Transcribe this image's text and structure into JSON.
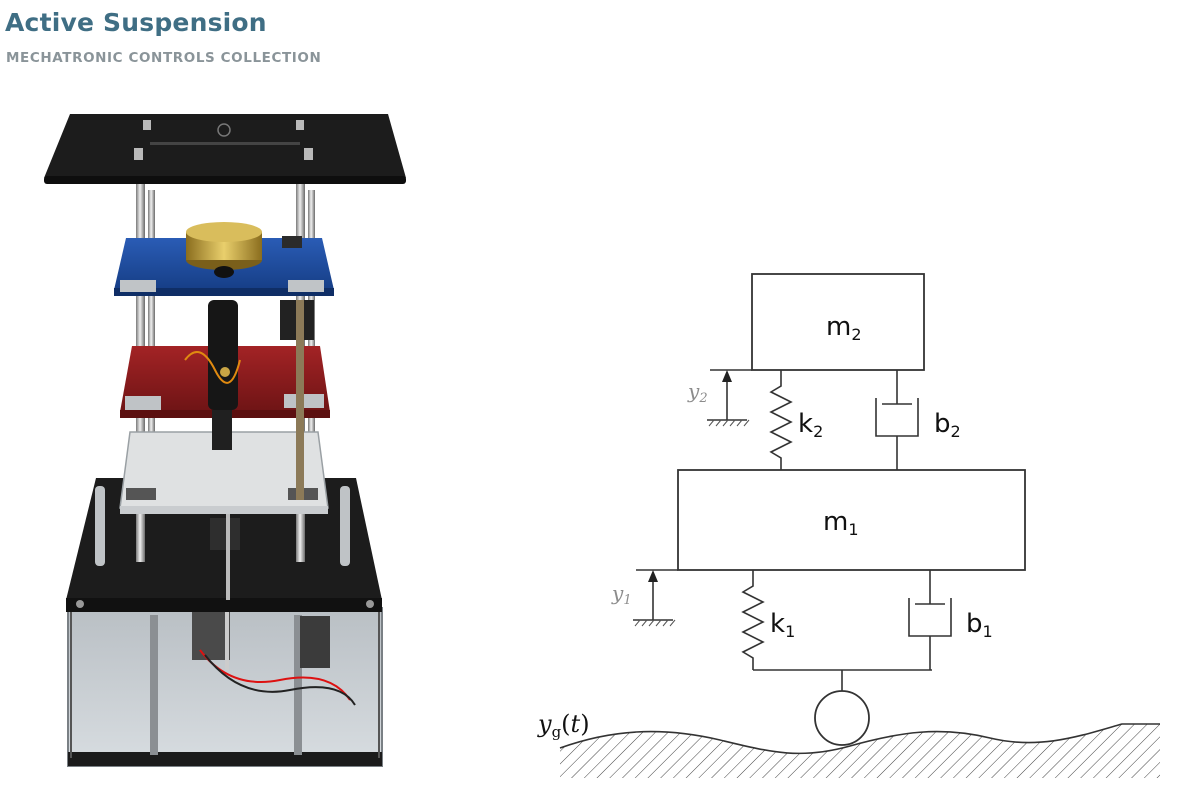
{
  "header": {
    "title": "Active Suspension",
    "subtitle": "MECHATRONIC CONTROLS COLLECTION"
  },
  "diagram": {
    "m2": "m",
    "m2_sub": "2",
    "m1": "m",
    "m1_sub": "1",
    "k2": "k",
    "k2_sub": "2",
    "b2": "b",
    "b2_sub": "2",
    "k1": "k",
    "k1_sub": "1",
    "b1": "b",
    "b1_sub": "1",
    "y2": "y",
    "y2_sub": "2",
    "y1": "y",
    "y1_sub": "1",
    "yg": "y",
    "yg_sub": "g",
    "yg_open": "(",
    "yg_t": "t",
    "yg_close": ")"
  },
  "colors": {
    "title": "#3f6e84",
    "subtitle": "#8a9499",
    "plate_blue": "#1f4fa0",
    "plate_red": "#8e1b1c",
    "plate_black": "#1c1c1c"
  }
}
